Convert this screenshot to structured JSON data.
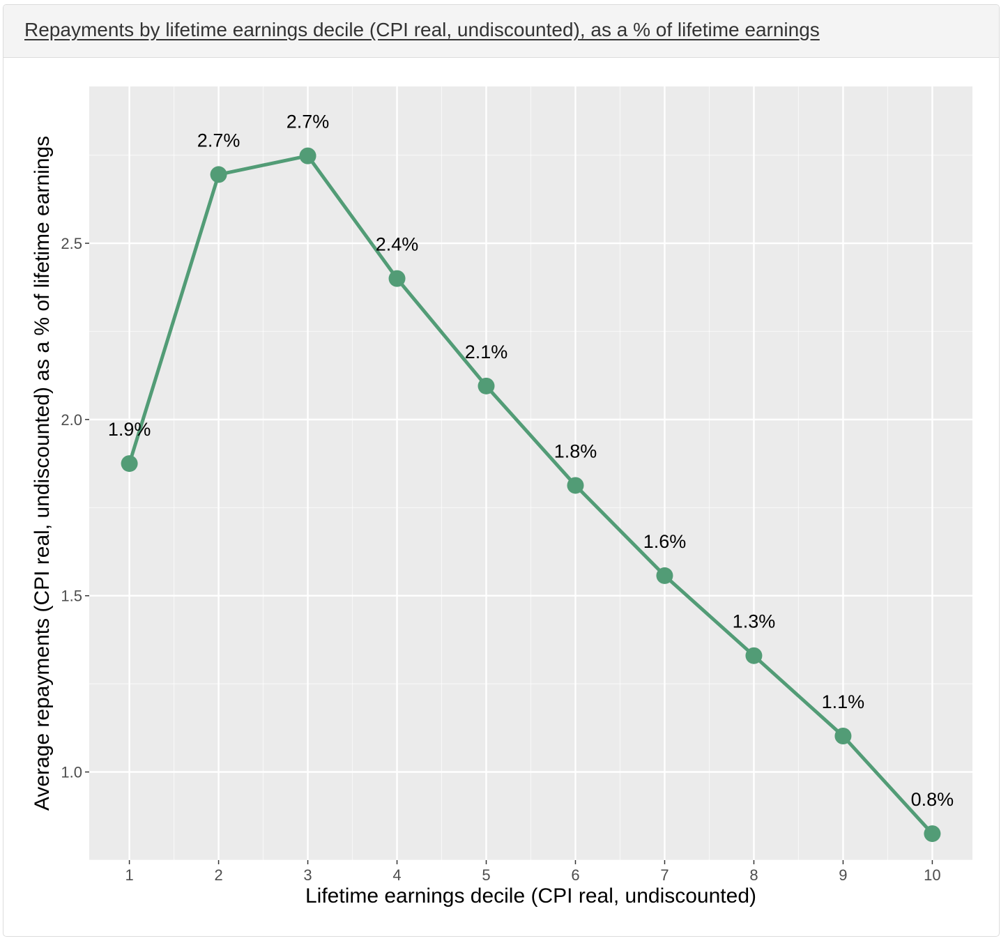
{
  "panel": {
    "title": "Repayments by lifetime earnings decile (CPI real, undiscounted), as a % of lifetime earnings"
  },
  "colors": {
    "plot_background": "#ebebeb",
    "grid_major": "#ffffff",
    "series_line": "#529c76",
    "axis_text": "#4d4d4d",
    "label_text": "#000000"
  },
  "chart_data": {
    "type": "line",
    "title": "Repayments by lifetime earnings decile (CPI real, undiscounted), as a % of lifetime earnings",
    "xlabel": "Lifetime earnings decile (CPI real, undiscounted)",
    "ylabel": "Average repayments (CPI real, undiscounted) as a % of lifetime earnings",
    "x": [
      1,
      2,
      3,
      4,
      5,
      6,
      7,
      8,
      9,
      10
    ],
    "x_tick_labels": [
      "1",
      "2",
      "3",
      "4",
      "5",
      "6",
      "7",
      "8",
      "9",
      "10"
    ],
    "values": [
      1.875,
      2.695,
      2.748,
      2.4,
      2.095,
      1.813,
      1.557,
      1.33,
      1.102,
      0.825
    ],
    "data_labels": [
      "1.9%",
      "2.7%",
      "2.7%",
      "2.4%",
      "2.1%",
      "1.8%",
      "1.6%",
      "1.3%",
      "1.1%",
      "0.8%"
    ],
    "y_ticks": [
      1.0,
      1.5,
      2.0,
      2.5
    ],
    "y_tick_labels": [
      "1.0",
      "1.5",
      "2.0",
      "2.5"
    ],
    "xlim": [
      0.55,
      10.45
    ],
    "ylim": [
      0.75,
      2.945
    ],
    "grid": true,
    "legend": "none"
  }
}
